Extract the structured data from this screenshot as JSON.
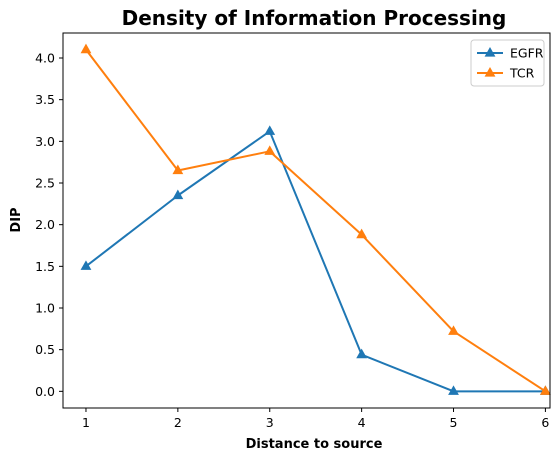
{
  "chart_data": {
    "type": "line",
    "title": "Density of Information Processing",
    "xlabel": "Distance to source",
    "ylabel": "DIP",
    "x": [
      1,
      2,
      3,
      4,
      5,
      6
    ],
    "xticks": [
      1,
      2,
      3,
      4,
      5,
      6
    ],
    "yticks": [
      0.0,
      0.5,
      1.0,
      1.5,
      2.0,
      2.5,
      3.0,
      3.5,
      4.0
    ],
    "xlim": [
      0.75,
      6.05
    ],
    "ylim": [
      -0.2,
      4.3
    ],
    "grid": false,
    "legend_position": "top-right",
    "marker": "triangle",
    "series": [
      {
        "name": "EGFR",
        "color": "#1f77b4",
        "values": [
          1.5,
          2.35,
          3.12,
          0.44,
          0.0,
          0.0
        ]
      },
      {
        "name": "TCR",
        "color": "#ff7f0e",
        "values": [
          4.1,
          2.65,
          2.88,
          1.88,
          0.72,
          0.0
        ]
      }
    ]
  }
}
